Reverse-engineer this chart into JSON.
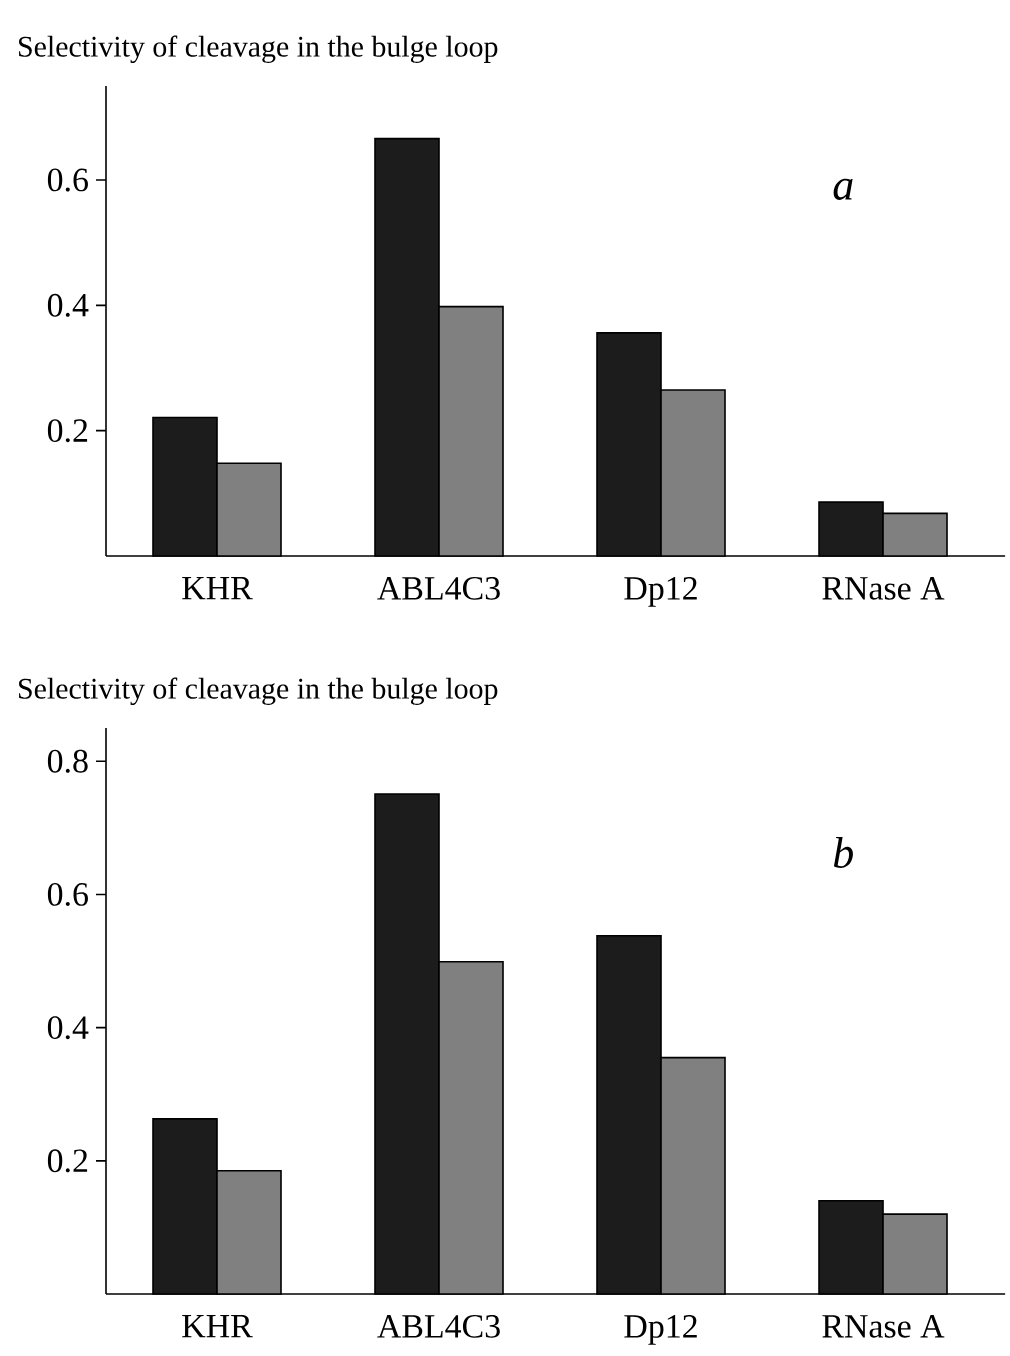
{
  "chart_data": [
    {
      "type": "bar",
      "ylabel": "Selectivity of cleavage in the bulge loop",
      "categories": [
        "KHR",
        "ABL4C3",
        "Dp12",
        "RNase A"
      ],
      "series": [
        {
          "color": "#1c1c1c",
          "values": [
            0.221,
            0.666,
            0.356,
            0.086
          ]
        },
        {
          "color": "#808080",
          "values": [
            0.148,
            0.398,
            0.265,
            0.068
          ]
        }
      ],
      "ylim": [
        0,
        0.75
      ],
      "yticks": [
        0.2,
        0.4,
        0.6
      ],
      "annotations": [
        "a"
      ]
    },
    {
      "type": "bar",
      "ylabel": "Selectivity of cleavage in the bulge loop",
      "categories": [
        "KHR",
        "ABL4C3",
        "Dp12",
        "RNase A"
      ],
      "series": [
        {
          "color": "#1c1c1c",
          "values": [
            0.263,
            0.751,
            0.538,
            0.14
          ]
        },
        {
          "color": "#808080",
          "values": [
            0.185,
            0.499,
            0.355,
            0.12
          ]
        }
      ],
      "ylim": [
        0,
        0.85
      ],
      "yticks": [
        0.2,
        0.4,
        0.6,
        0.8
      ],
      "annotations": [
        "b"
      ]
    }
  ]
}
